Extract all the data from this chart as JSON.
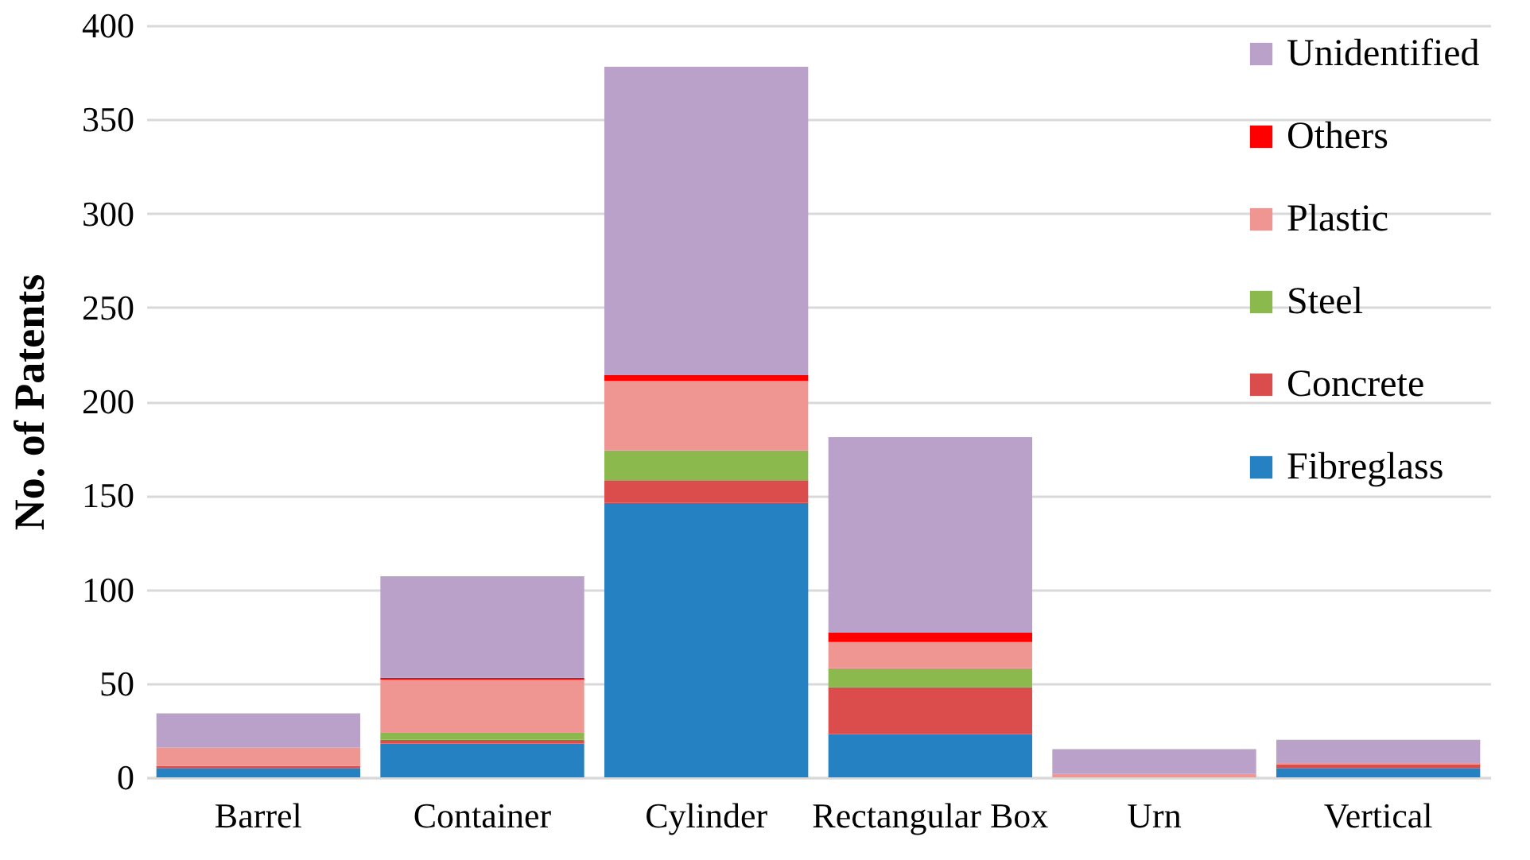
{
  "chart_data": {
    "type": "bar",
    "stacked": true,
    "ylabel": "No. of Patents",
    "categories": [
      "Barrel",
      "Container",
      "Cylinder",
      "Rectangular Box",
      "Urn",
      "Vertical"
    ],
    "ylim": [
      0,
      400
    ],
    "yticks": [
      0,
      50,
      100,
      150,
      200,
      250,
      300,
      350,
      400
    ],
    "grid": "y",
    "legend": "top right",
    "series": [
      {
        "name": "Fibreglass",
        "color": "#2681c2",
        "values": [
          5,
          18,
          146,
          23,
          0,
          5
        ]
      },
      {
        "name": "Concrete",
        "color": "#db4d4d",
        "values": [
          1,
          2,
          12,
          25,
          0,
          2
        ]
      },
      {
        "name": "Steel",
        "color": "#8cb94e",
        "values": [
          0,
          4,
          16,
          10,
          0,
          0
        ]
      },
      {
        "name": "Plastic",
        "color": "#ef9692",
        "values": [
          10,
          28,
          37,
          14,
          2,
          1
        ]
      },
      {
        "name": "Others",
        "color": "#ff0000",
        "values": [
          0,
          1,
          3,
          5,
          0,
          0
        ]
      },
      {
        "name": "Unidentified",
        "color": "#b9a1c9",
        "values": [
          18,
          54,
          164,
          104,
          13,
          12
        ]
      }
    ]
  }
}
